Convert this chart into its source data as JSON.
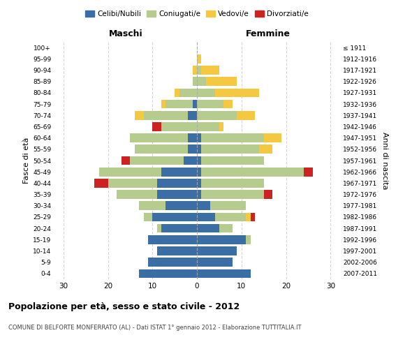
{
  "age_groups": [
    "0-4",
    "5-9",
    "10-14",
    "15-19",
    "20-24",
    "25-29",
    "30-34",
    "35-39",
    "40-44",
    "45-49",
    "50-54",
    "55-59",
    "60-64",
    "65-69",
    "70-74",
    "75-79",
    "80-84",
    "85-89",
    "90-94",
    "95-99",
    "100+"
  ],
  "birth_years": [
    "2007-2011",
    "2002-2006",
    "1997-2001",
    "1992-1996",
    "1987-1991",
    "1982-1986",
    "1977-1981",
    "1972-1976",
    "1967-1971",
    "1962-1966",
    "1957-1961",
    "1952-1956",
    "1947-1951",
    "1942-1946",
    "1937-1941",
    "1932-1936",
    "1927-1931",
    "1922-1926",
    "1917-1921",
    "1912-1916",
    "≤ 1911"
  ],
  "males": {
    "celibi": [
      13,
      11,
      9,
      11,
      8,
      10,
      7,
      9,
      9,
      8,
      3,
      2,
      2,
      0,
      2,
      1,
      0,
      0,
      0,
      0,
      0
    ],
    "coniugati": [
      0,
      0,
      0,
      0,
      1,
      2,
      6,
      9,
      11,
      14,
      12,
      12,
      13,
      8,
      10,
      6,
      4,
      1,
      0,
      0,
      0
    ],
    "vedovi": [
      0,
      0,
      0,
      0,
      0,
      0,
      0,
      0,
      0,
      0,
      0,
      0,
      0,
      0,
      2,
      1,
      1,
      0,
      1,
      0,
      0
    ],
    "divorziati": [
      0,
      0,
      0,
      0,
      0,
      0,
      0,
      0,
      3,
      0,
      2,
      0,
      0,
      2,
      0,
      0,
      0,
      0,
      0,
      0,
      0
    ]
  },
  "females": {
    "nubili": [
      12,
      8,
      9,
      11,
      5,
      4,
      3,
      1,
      1,
      1,
      1,
      1,
      1,
      0,
      0,
      0,
      0,
      0,
      0,
      0,
      0
    ],
    "coniugate": [
      0,
      0,
      0,
      1,
      3,
      7,
      8,
      14,
      14,
      23,
      14,
      13,
      14,
      5,
      9,
      6,
      4,
      2,
      1,
      0,
      0
    ],
    "vedove": [
      0,
      0,
      0,
      0,
      0,
      1,
      0,
      0,
      0,
      0,
      0,
      3,
      4,
      1,
      4,
      2,
      10,
      7,
      4,
      1,
      0
    ],
    "divorziate": [
      0,
      0,
      0,
      0,
      0,
      1,
      0,
      2,
      0,
      2,
      0,
      0,
      0,
      0,
      0,
      0,
      0,
      0,
      0,
      0,
      0
    ]
  },
  "colors": {
    "celibi": "#3a6ea5",
    "coniugati": "#b5cc8e",
    "vedovi": "#f5c842",
    "divorziati": "#cc2222"
  },
  "xlim": 32,
  "title": "Popolazione per età, sesso e stato civile - 2012",
  "subtitle": "COMUNE DI BELFORTE MONFERRATO (AL) - Dati ISTAT 1° gennaio 2012 - Elaborazione TUTTITALIA.IT",
  "xlabel_left": "Maschi",
  "xlabel_right": "Femmine",
  "ylabel_left": "Fasce di età",
  "ylabel_right": "Anni di nascita"
}
